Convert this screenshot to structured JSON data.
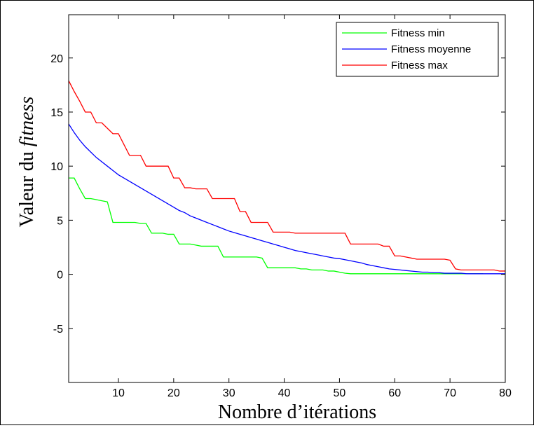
{
  "chart_data": {
    "type": "line",
    "xlabel": "Nombre d’itérations",
    "ylabel_prefix": "Valeur du ",
    "ylabel_italic": "fitness",
    "xlim": [
      1,
      80
    ],
    "ylim": [
      -10,
      24
    ],
    "xticks": [
      10,
      20,
      30,
      40,
      50,
      60,
      70,
      80
    ],
    "yticks": [
      -5,
      0,
      5,
      10,
      15,
      20
    ],
    "grid": false,
    "legend_position": "top-right",
    "series": [
      {
        "name": "Fitness min",
        "color": "#00ff00",
        "x": [
          1,
          2,
          3,
          4,
          5,
          6,
          7,
          8,
          9,
          10,
          11,
          12,
          13,
          14,
          15,
          16,
          17,
          18,
          19,
          20,
          21,
          22,
          23,
          24,
          25,
          26,
          27,
          28,
          29,
          30,
          31,
          32,
          33,
          34,
          35,
          36,
          37,
          38,
          39,
          40,
          41,
          42,
          43,
          44,
          45,
          46,
          47,
          48,
          49,
          50,
          51,
          52,
          53,
          54,
          55,
          56,
          57,
          58,
          59,
          60,
          61,
          62,
          63,
          64,
          65,
          66,
          67,
          68,
          69,
          70,
          71,
          72,
          73,
          74,
          75,
          76
        ],
        "y": [
          8.9,
          8.9,
          7.9,
          7.0,
          7.0,
          6.9,
          6.8,
          6.7,
          4.8,
          4.8,
          4.8,
          4.8,
          4.8,
          4.7,
          4.7,
          3.8,
          3.8,
          3.8,
          3.7,
          3.7,
          2.8,
          2.8,
          2.8,
          2.7,
          2.6,
          2.6,
          2.6,
          2.6,
          1.6,
          1.6,
          1.6,
          1.6,
          1.6,
          1.6,
          1.6,
          1.5,
          0.6,
          0.6,
          0.6,
          0.6,
          0.6,
          0.6,
          0.5,
          0.5,
          0.4,
          0.4,
          0.4,
          0.3,
          0.3,
          0.2,
          0.1,
          0.05,
          0.05,
          0.05,
          0.05,
          0.05,
          0.05,
          0.05,
          0.05,
          0.05,
          0.05,
          0.05,
          0.05,
          0.05,
          0.05,
          0.05,
          0.05,
          0.05,
          0.05,
          0.05,
          0.05,
          0.05,
          0.05,
          0.05,
          0.05,
          0.05
        ]
      },
      {
        "name": "Fitness moyenne",
        "color": "#0000ff",
        "x": [
          1,
          2,
          3,
          4,
          5,
          6,
          7,
          8,
          9,
          10,
          11,
          12,
          13,
          14,
          15,
          16,
          17,
          18,
          19,
          20,
          21,
          22,
          23,
          24,
          25,
          26,
          27,
          28,
          29,
          30,
          31,
          32,
          33,
          34,
          35,
          36,
          37,
          38,
          39,
          40,
          41,
          42,
          43,
          44,
          45,
          46,
          47,
          48,
          49,
          50,
          51,
          52,
          53,
          54,
          55,
          56,
          57,
          58,
          59,
          60,
          61,
          62,
          63,
          64,
          65,
          66,
          67,
          68,
          69,
          70,
          71,
          72,
          73,
          74,
          75,
          76,
          77,
          78,
          79,
          80
        ],
        "y": [
          13.9,
          13.1,
          12.4,
          11.8,
          11.3,
          10.8,
          10.4,
          10.0,
          9.6,
          9.2,
          8.9,
          8.6,
          8.3,
          8.0,
          7.7,
          7.4,
          7.1,
          6.8,
          6.5,
          6.2,
          5.9,
          5.7,
          5.4,
          5.2,
          5.0,
          4.8,
          4.6,
          4.4,
          4.2,
          4.0,
          3.85,
          3.7,
          3.55,
          3.4,
          3.25,
          3.1,
          2.95,
          2.8,
          2.65,
          2.5,
          2.35,
          2.2,
          2.1,
          2.0,
          1.9,
          1.8,
          1.7,
          1.6,
          1.5,
          1.45,
          1.35,
          1.25,
          1.15,
          1.05,
          0.9,
          0.8,
          0.7,
          0.6,
          0.5,
          0.45,
          0.4,
          0.35,
          0.3,
          0.25,
          0.2,
          0.2,
          0.15,
          0.15,
          0.1,
          0.1,
          0.1,
          0.1,
          0.05,
          0.05,
          0.05,
          0.05,
          0.05,
          0.05,
          0.05,
          0.05
        ]
      },
      {
        "name": "Fitness max",
        "color": "#ff0000",
        "x": [
          1,
          2,
          3,
          4,
          5,
          6,
          7,
          8,
          9,
          10,
          11,
          12,
          13,
          14,
          15,
          16,
          17,
          18,
          19,
          20,
          21,
          22,
          23,
          24,
          25,
          26,
          27,
          28,
          29,
          30,
          31,
          32,
          33,
          34,
          35,
          36,
          37,
          38,
          39,
          40,
          41,
          42,
          43,
          44,
          45,
          46,
          47,
          48,
          49,
          50,
          51,
          52,
          53,
          54,
          55,
          56,
          57,
          58,
          59,
          60,
          61,
          62,
          63,
          64,
          65,
          66,
          67,
          68,
          69,
          70,
          71,
          72,
          73,
          74,
          75,
          76,
          77,
          78,
          79,
          80
        ],
        "y": [
          17.9,
          16.9,
          16.0,
          15.0,
          15.0,
          14.0,
          14.0,
          13.5,
          13.0,
          13.0,
          12.0,
          11.0,
          11.0,
          11.0,
          10.0,
          10.0,
          10.0,
          10.0,
          10.0,
          8.9,
          8.9,
          8.0,
          8.0,
          7.9,
          7.9,
          7.9,
          7.0,
          7.0,
          7.0,
          7.0,
          7.0,
          5.8,
          5.8,
          4.8,
          4.8,
          4.8,
          4.8,
          3.9,
          3.9,
          3.9,
          3.9,
          3.8,
          3.8,
          3.8,
          3.8,
          3.8,
          3.8,
          3.8,
          3.8,
          3.8,
          3.8,
          2.8,
          2.8,
          2.8,
          2.8,
          2.8,
          2.8,
          2.6,
          2.6,
          1.7,
          1.7,
          1.6,
          1.5,
          1.4,
          1.4,
          1.4,
          1.4,
          1.4,
          1.4,
          1.3,
          0.5,
          0.4,
          0.4,
          0.4,
          0.4,
          0.4,
          0.4,
          0.4,
          0.3,
          0.3
        ]
      }
    ]
  }
}
